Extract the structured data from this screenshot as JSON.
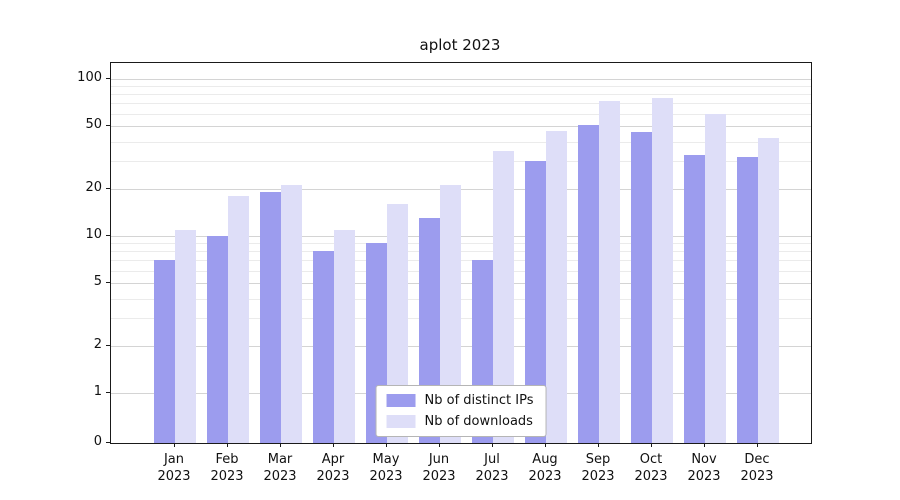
{
  "chart_data": {
    "type": "bar",
    "title": "aplot 2023",
    "categories": [
      "Jan 2023",
      "Feb 2023",
      "Mar 2023",
      "Apr 2023",
      "May 2023",
      "Jun 2023",
      "Jul 2023",
      "Aug 2023",
      "Sep 2023",
      "Oct 2023",
      "Nov 2023",
      "Dec 2023"
    ],
    "series": [
      {
        "name": "Nb of distinct IPs",
        "color": "#9c9cee",
        "values": [
          7,
          10,
          19,
          8,
          9,
          13,
          7,
          30,
          51,
          46,
          33,
          32
        ]
      },
      {
        "name": "Nb of downloads",
        "color": "#dedef8",
        "values": [
          11,
          18,
          21,
          11,
          16,
          21,
          35,
          47,
          72,
          76,
          60,
          42
        ]
      }
    ],
    "yscale": "symlog",
    "yticks": [
      0,
      1,
      2,
      5,
      10,
      20,
      50,
      100
    ],
    "ylim": [
      0,
      120
    ],
    "grid": "both-horizontal",
    "legend_position": "lower center",
    "colors": {
      "grid_major": "#d4d4d4",
      "grid_minor": "#ebebeb",
      "axis": "#1a1a1a"
    }
  }
}
